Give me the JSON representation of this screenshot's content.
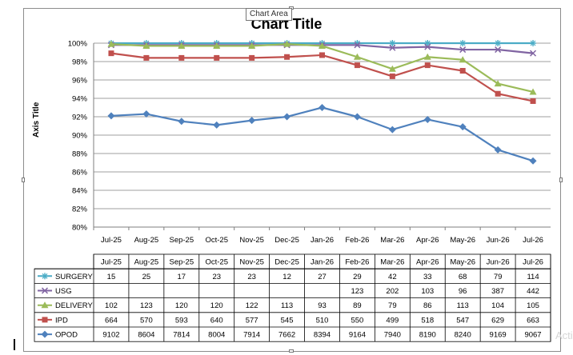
{
  "tooltip": "Chart Area",
  "chart_data": {
    "type": "line",
    "title": "Chart Title",
    "ylabel": "Axis Title",
    "xlabel": "",
    "ylim": [
      80,
      100
    ],
    "yticks": [
      "80%",
      "82%",
      "84%",
      "86%",
      "88%",
      "90%",
      "92%",
      "94%",
      "96%",
      "98%",
      "100%"
    ],
    "grid": true,
    "categories": [
      "Jul-25",
      "Aug-25",
      "Sep-25",
      "Oct-25",
      "Nov-25",
      "Dec-25",
      "Jan-26",
      "Feb-26",
      "Mar-26",
      "Apr-26",
      "May-26",
      "Jun-26",
      "Jul-26"
    ],
    "series": [
      {
        "name": "SURGERY",
        "color": "#4bacc6",
        "marker": "star",
        "values": [
          100,
          100,
          100,
          100,
          100,
          100,
          100,
          100,
          100,
          100,
          100,
          100,
          100
        ],
        "table": [
          "15",
          "25",
          "17",
          "23",
          "23",
          "12",
          "27",
          "29",
          "42",
          "33",
          "68",
          "79",
          "114"
        ]
      },
      {
        "name": "USG",
        "color": "#8064a2",
        "marker": "x",
        "values": [
          99.8,
          99.8,
          99.8,
          99.8,
          99.8,
          99.8,
          99.8,
          99.8,
          99.5,
          99.6,
          99.3,
          99.3,
          98.9
        ],
        "table": [
          "",
          "",
          "",
          "",
          "",
          "",
          "",
          "123",
          "202",
          "103",
          "96",
          "387",
          "442"
        ]
      },
      {
        "name": "DELIVERY",
        "color": "#9bbb59",
        "marker": "triangle",
        "values": [
          99.9,
          99.7,
          99.7,
          99.7,
          99.7,
          99.9,
          99.7,
          98.5,
          97.2,
          98.5,
          98.2,
          95.6,
          94.7
        ],
        "table": [
          "102",
          "123",
          "120",
          "120",
          "122",
          "113",
          "93",
          "89",
          "79",
          "86",
          "113",
          "104",
          "105"
        ]
      },
      {
        "name": "IPD",
        "color": "#c0504d",
        "marker": "square",
        "values": [
          98.9,
          98.4,
          98.4,
          98.4,
          98.4,
          98.5,
          98.7,
          97.6,
          96.4,
          97.6,
          97.0,
          94.5,
          93.7
        ],
        "table": [
          "664",
          "570",
          "593",
          "640",
          "577",
          "545",
          "510",
          "550",
          "499",
          "518",
          "547",
          "629",
          "663"
        ]
      },
      {
        "name": "OPOD",
        "color": "#4f81bd",
        "marker": "diamond",
        "values": [
          92.1,
          92.3,
          91.5,
          91.1,
          91.6,
          92.0,
          93.0,
          92.0,
          90.6,
          91.7,
          90.9,
          88.4,
          87.2
        ],
        "table": [
          "9102",
          "8604",
          "7814",
          "8004",
          "7914",
          "7662",
          "8394",
          "9164",
          "7940",
          "8190",
          "8240",
          "9169",
          "9067"
        ]
      }
    ]
  },
  "watermark": "Acti"
}
